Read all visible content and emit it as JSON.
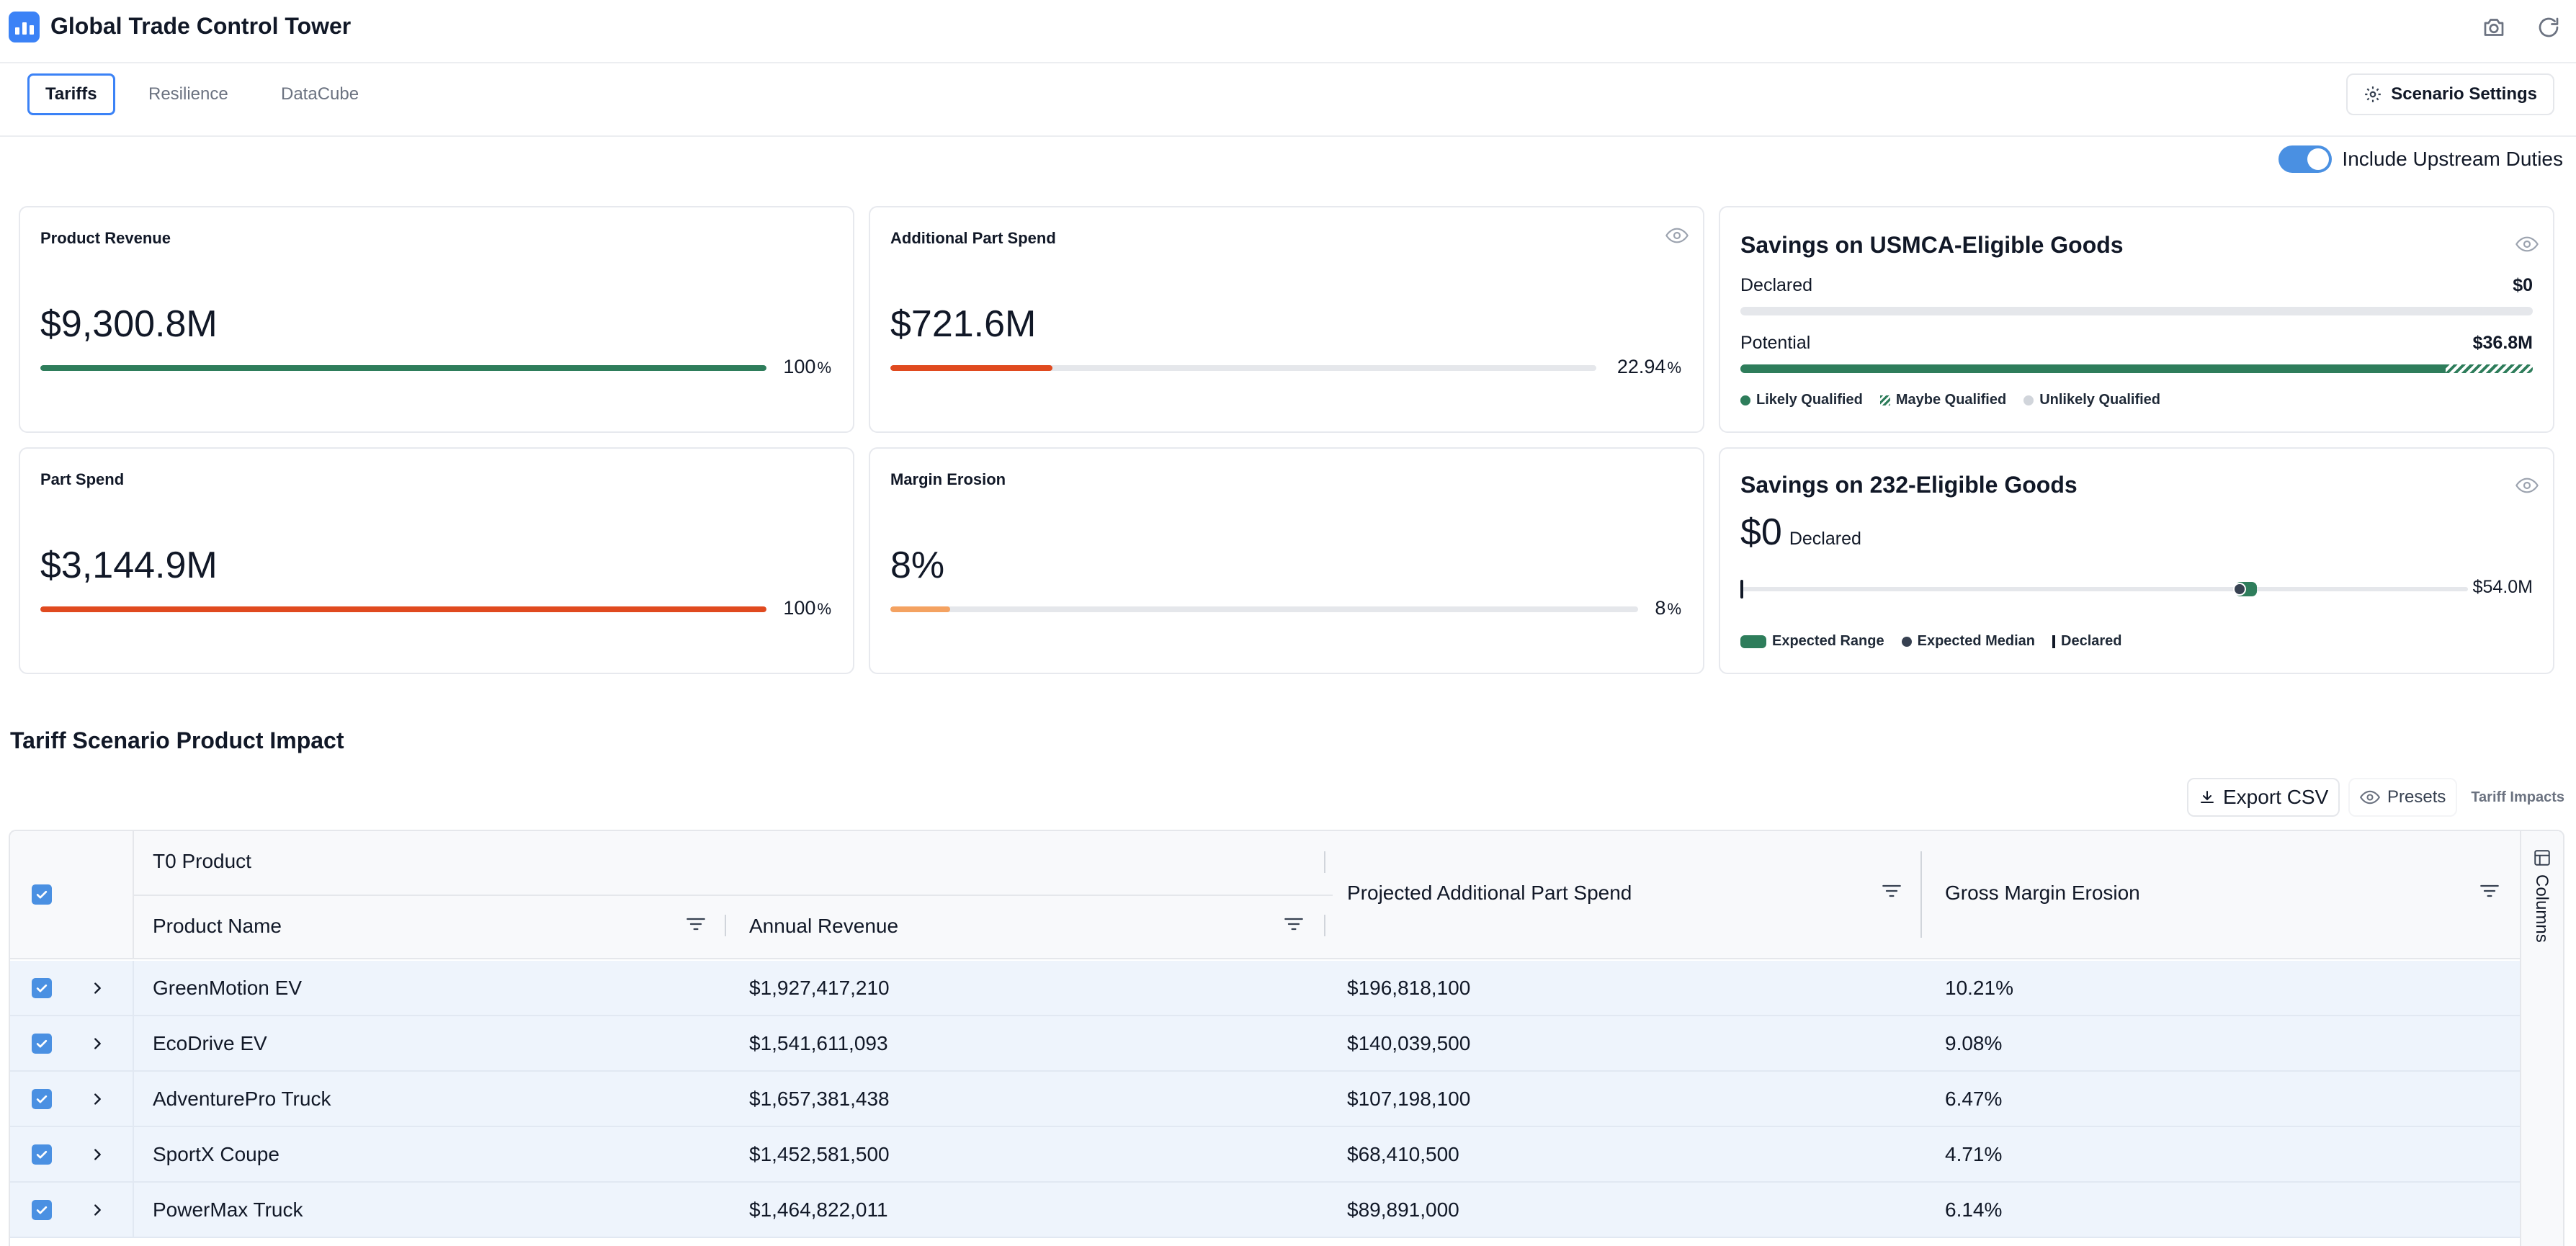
{
  "app": {
    "title": "Global Trade Control Tower"
  },
  "header_icons": [
    "camera-icon",
    "refresh-icon"
  ],
  "tabs": [
    {
      "label": "Tariffs",
      "active": true
    },
    {
      "label": "Resilience",
      "active": false
    },
    {
      "label": "DataCube",
      "active": false
    }
  ],
  "scenario_settings": {
    "label": "Scenario Settings"
  },
  "toggle": {
    "label": "Include Upstream Duties",
    "on": true
  },
  "kpis": {
    "product_revenue": {
      "title": "Product Revenue",
      "value": "$9,300.8M",
      "pct": "100",
      "unit": "%",
      "fill": 1.0,
      "color": "#2e7d5b"
    },
    "additional_part_spend": {
      "title": "Additional Part Spend",
      "value": "$721.6M",
      "pct": "22.94",
      "unit": "%",
      "fill": 0.2294,
      "color": "#e04a1f"
    },
    "part_spend": {
      "title": "Part Spend",
      "value": "$3,144.9M",
      "pct": "100",
      "unit": "%",
      "fill": 1.0,
      "color": "#e04a1f"
    },
    "margin_erosion": {
      "title": "Margin Erosion",
      "value": "8%",
      "pct": "8",
      "unit": "%",
      "fill": 0.08,
      "color": "#f4a261"
    }
  },
  "usmca": {
    "title": "Savings on USMCA-Eligible Goods",
    "declared_label": "Declared",
    "declared_value": "$0",
    "declared_fill": 0,
    "potential_label": "Potential",
    "potential_value": "$36.8M",
    "likely_fill": 0.89,
    "maybe_fill": 0.11,
    "legend": [
      "Likely Qualified",
      "Maybe Qualified",
      "Unlikely Qualified"
    ]
  },
  "s232": {
    "title": "Savings on 232-Eligible Goods",
    "value": "$0",
    "value_label": "Declared",
    "max_label": "$54.0M",
    "range_start": 0.68,
    "range_end": 0.71,
    "median": 0.686,
    "declared_pos": 0,
    "legend": [
      "Expected Range",
      "Expected Median",
      "Declared"
    ]
  },
  "section": {
    "title": "Tariff Scenario Product Impact"
  },
  "toolbar": {
    "export_label": "Export CSV",
    "presets_label": "Presets",
    "view_label": "Tariff Impacts"
  },
  "table": {
    "group_header": "T0 Product",
    "columns": [
      "Product Name",
      "Annual Revenue",
      "Projected Additional Part Spend",
      "Gross Margin Erosion"
    ],
    "side_panel_label": "Columns",
    "rows": [
      {
        "name": "GreenMotion EV",
        "revenue": "$1,927,417,210",
        "spend": "$196,818,100",
        "erosion": "10.21%"
      },
      {
        "name": "EcoDrive EV",
        "revenue": "$1,541,611,093",
        "spend": "$140,039,500",
        "erosion": "9.08%"
      },
      {
        "name": "AdventurePro Truck",
        "revenue": "$1,657,381,438",
        "spend": "$107,198,100",
        "erosion": "6.47%"
      },
      {
        "name": "SportX Coupe",
        "revenue": "$1,452,581,500",
        "spend": "$68,410,500",
        "erosion": "4.71%"
      },
      {
        "name": "PowerMax Truck",
        "revenue": "$1,464,822,011",
        "spend": "$89,891,000",
        "erosion": "6.14%"
      }
    ]
  }
}
